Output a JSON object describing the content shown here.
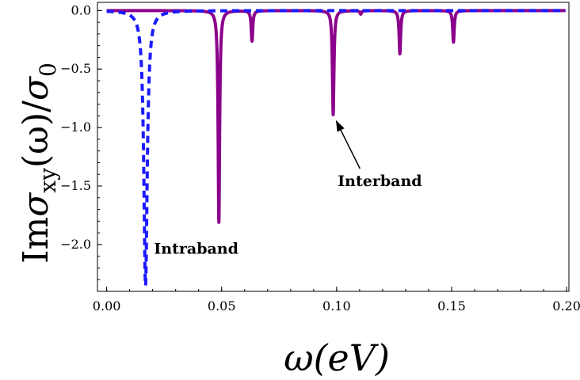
{
  "chart_data": {
    "type": "line",
    "title": "",
    "xlabel": "ω(eV)",
    "ylabel": "Imσxy(ω)/σ0",
    "ylabel_parts": {
      "main": "Im",
      "sigma": "σ",
      "sub": "xy",
      "arg": "(ω)/",
      "sigma2": "σ",
      "sub2": "0"
    },
    "xlim": [
      -0.004,
      0.201
    ],
    "ylim": [
      -2.4,
      0.07
    ],
    "x_ticks": [
      0.0,
      0.05,
      0.1,
      0.15,
      0.2
    ],
    "x_tick_labels": [
      "0.00",
      "0.05",
      "0.10",
      "0.15",
      "0.20"
    ],
    "y_ticks": [
      0.0,
      -0.5,
      -1.0,
      -1.5,
      -2.0
    ],
    "y_tick_labels": [
      "0.0",
      "−0.5",
      "−1.0",
      "−1.5",
      "−2.0"
    ],
    "grid": false,
    "series": [
      {
        "color": "#8b008b",
        "style": "solid",
        "peaks": [
          {
            "x": 0.0488,
            "depth": -1.81
          },
          {
            "x": 0.0632,
            "depth": -0.26
          },
          {
            "x": 0.0985,
            "depth": -0.89
          },
          {
            "x": 0.1105,
            "depth": -0.03
          },
          {
            "x": 0.1275,
            "depth": -0.37
          },
          {
            "x": 0.1508,
            "depth": -0.27
          }
        ],
        "width": 0.0004
      },
      {
        "color": "#1a1aff",
        "style": "dashed",
        "peaks": [
          {
            "x": 0.0169,
            "depth": -2.35
          }
        ],
        "width": 0.0009
      }
    ],
    "annotations": [
      {
        "text": "Intraband",
        "x": 0.0206,
        "y": -2.08,
        "arrow": false
      },
      {
        "text": "Interband",
        "x": 0.1005,
        "y": -1.5,
        "arrow": true,
        "arrow_to": [
          0.0988,
          -0.93
        ]
      }
    ]
  }
}
